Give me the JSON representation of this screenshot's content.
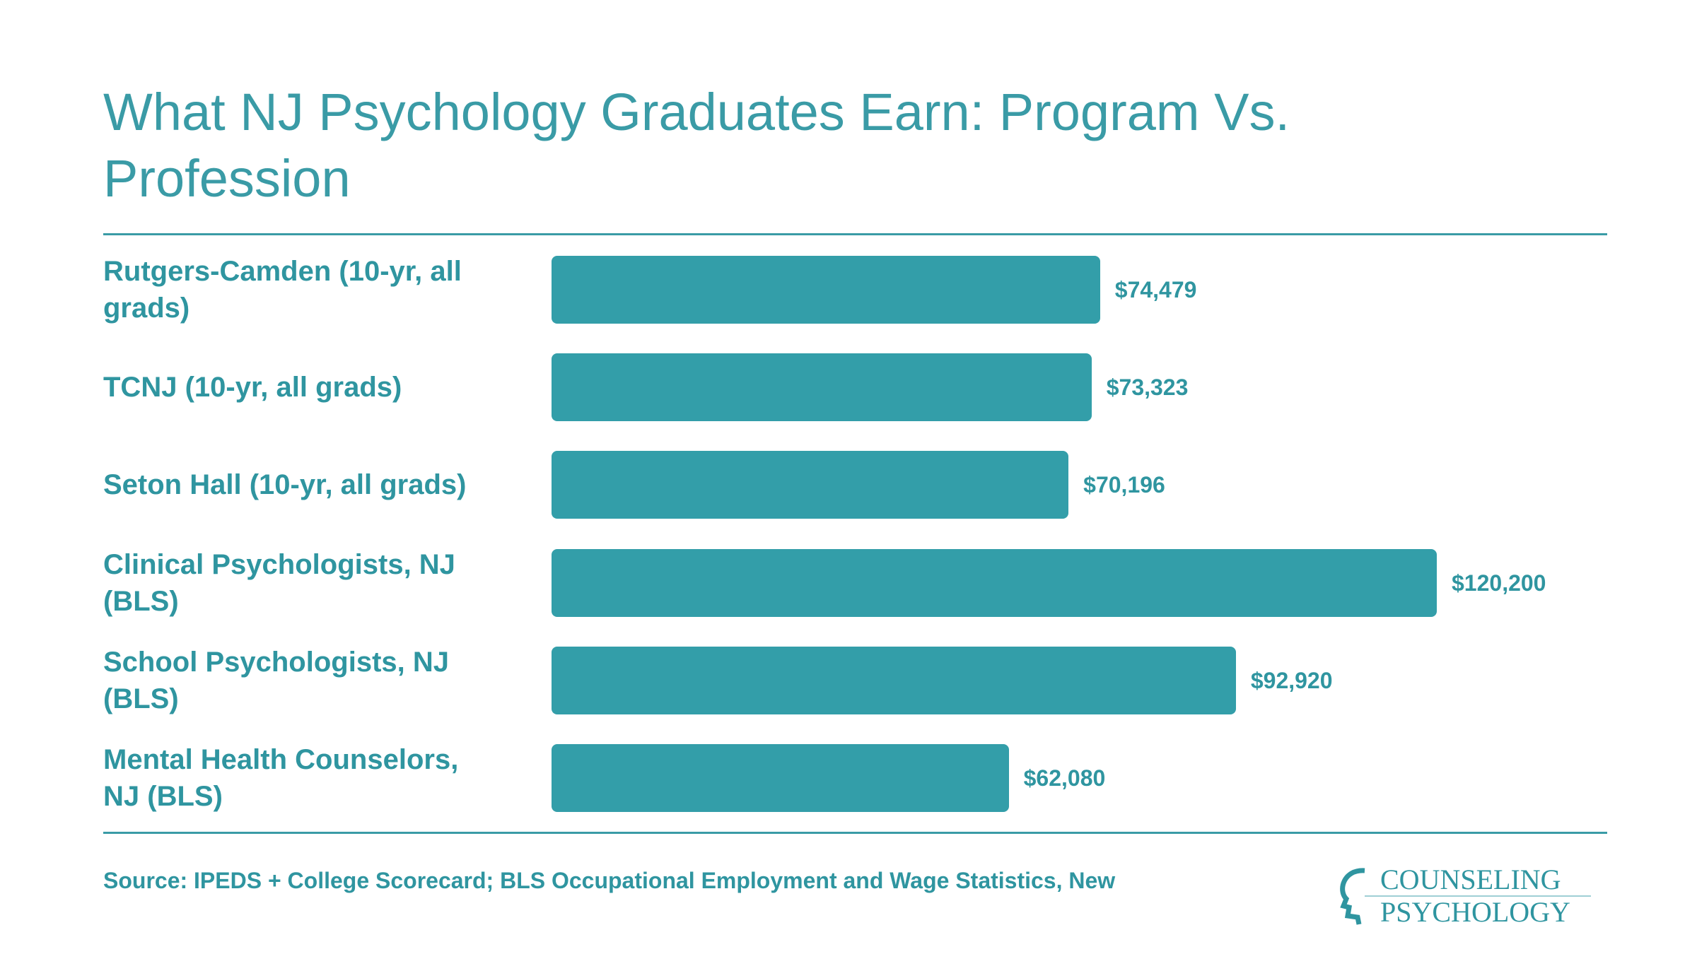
{
  "chart_data": {
    "type": "bar",
    "orientation": "horizontal",
    "title": "What NJ Psychology Graduates Earn: Program Vs. Profession",
    "categories": [
      "Rutgers-Camden (10-yr, all grads)",
      "TCNJ (10-yr, all grads)",
      "Seton Hall (10-yr, all grads)",
      "Clinical Psychologists, NJ (BLS)",
      "School Psychologists, NJ (BLS)",
      "Mental Health Counselors, NJ (BLS)"
    ],
    "values": [
      74479,
      73323,
      70196,
      120200,
      92920,
      62080
    ],
    "value_labels": [
      "$74,479",
      "$73,323",
      "$70,196",
      "$120,200",
      "$92,920",
      "$62,080"
    ],
    "color": "#339ea9",
    "source": "Source: IPEDS + College Scorecard; BLS Occupational Employment and Wage Statistics, New"
  },
  "logo": {
    "line1": "COUNSELING",
    "line2": "PSYCHOLOGY"
  }
}
